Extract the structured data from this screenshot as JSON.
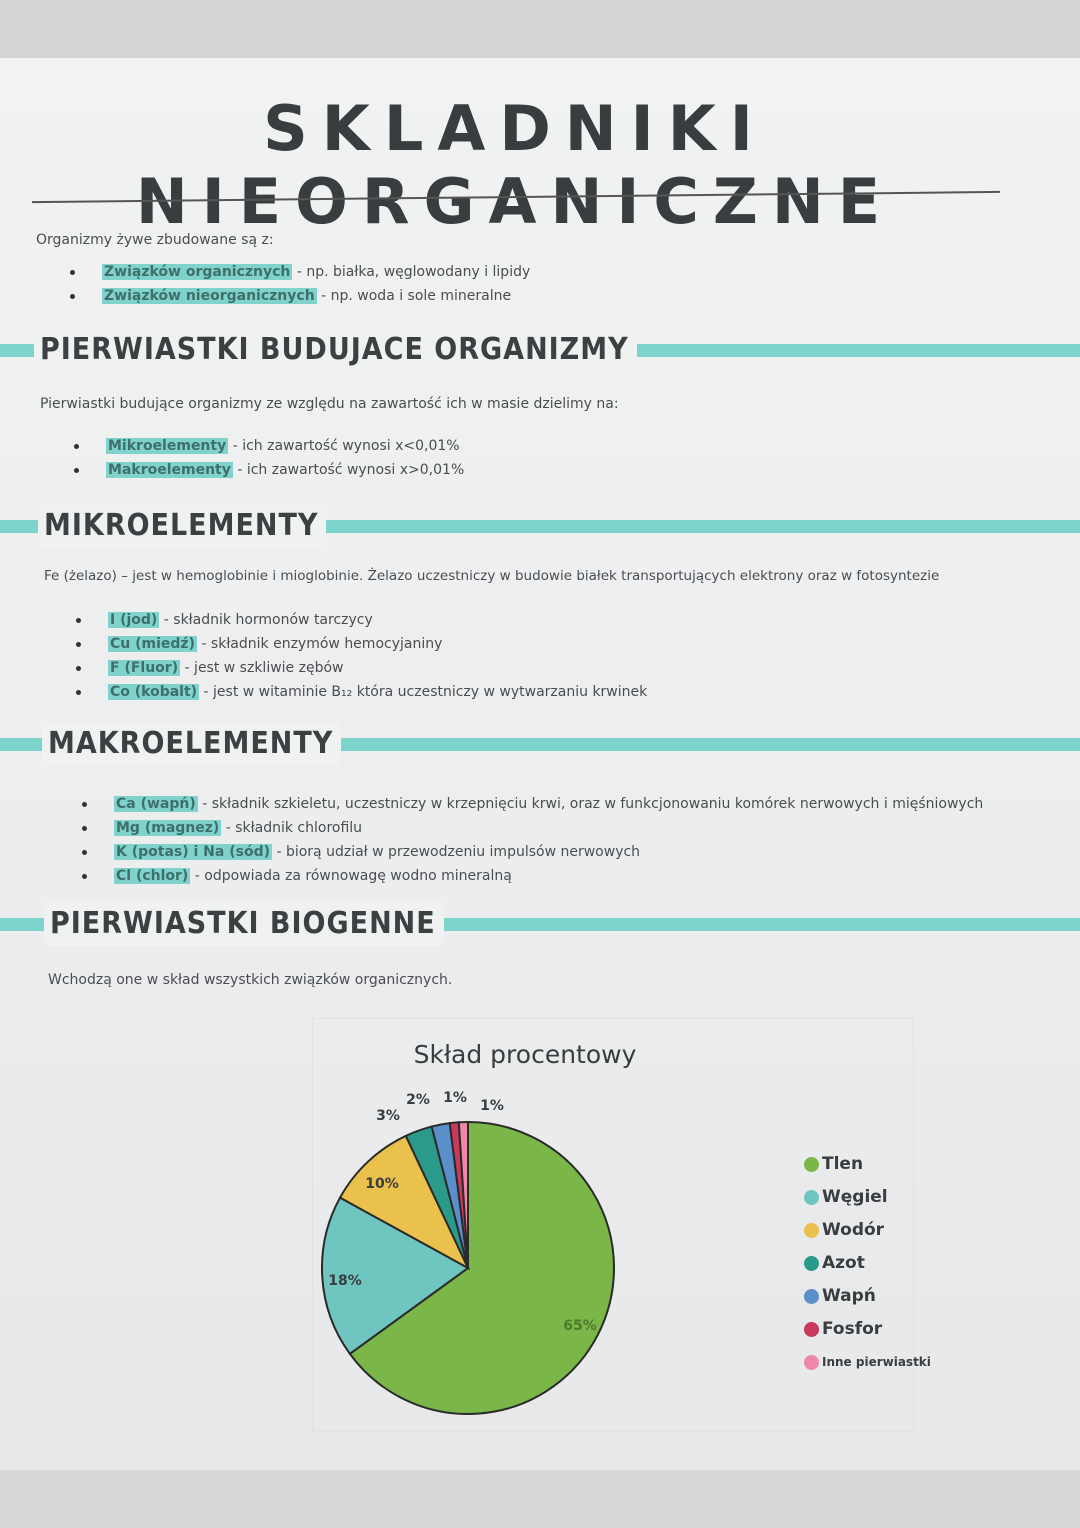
{
  "title": "SKLADNIKI NIEORGANICZNE",
  "intro": {
    "text": "Organizmy żywe zbudowane są z:",
    "items": [
      {
        "highlight": "Związków organicznych",
        "text": "- np. białka, węglowodany i lipidy"
      },
      {
        "highlight": "Związków nieorganicznych",
        "text": "- np. woda i sole mineralne"
      }
    ]
  },
  "sections": {
    "pierwiastki": {
      "heading": "PIERWIASTKI BUDUJACE ORGANIZMY",
      "text": "Pierwiastki budujące organizmy ze względu na zawartość ich w masie dzielimy na:",
      "items": [
        {
          "highlight": "Mikroelementy",
          "text": "- ich zawartość wynosi x<0,01%"
        },
        {
          "highlight": "Makroelementy",
          "text": "- ich zawartość wynosi x>0,01%"
        }
      ]
    },
    "mikro": {
      "heading": "MIKROELEMENTY",
      "text": "Fe (żelazo) – jest w hemoglobinie i mioglobinie. Żelazo uczestniczy w budowie białek transportujących elektrony oraz w fotosyntezie",
      "items": [
        {
          "highlight": "I (jod)",
          "text": "- składnik hormonów tarczycy"
        },
        {
          "highlight": "Cu (miedź)",
          "text": "- składnik enzymów hemocyjaniny"
        },
        {
          "highlight": "F (Fluor)",
          "text": "- jest w szkliwie zębów"
        },
        {
          "highlight": "Co (kobalt)",
          "text": "- jest w witaminie B₁₂ która uczestniczy w wytwarzaniu krwinek"
        }
      ]
    },
    "makro": {
      "heading": "MAKROELEMENTY",
      "items": [
        {
          "highlight": "Ca (wapń)",
          "text": "- składnik szkieletu, uczestniczy w krzepnięciu krwi, oraz w funkcjonowaniu komórek nerwowych i mięśniowych"
        },
        {
          "highlight": "Mg (magnez)",
          "text": "- składnik chlorofilu"
        },
        {
          "highlight": "K (potas) i Na (sód)",
          "text": "- biorą udział w przewodzeniu impulsów nerwowych"
        },
        {
          "highlight": "Cl (chlor)",
          "text": "- odpowiada za równowagę wodno mineralną"
        }
      ]
    },
    "biogenne": {
      "heading": "PIERWIASTKI BIOGENNE",
      "text": "Wchodzą one w skład wszystkich związków organicznych."
    }
  },
  "colors": {
    "accent": "#7dd4cc"
  },
  "chart_data": {
    "type": "pie",
    "title": "Skład procentowy",
    "categories": [
      "Tlen",
      "Węgiel",
      "Wodór",
      "Azot",
      "Wapń",
      "Fosfor",
      "Inne pierwiastki"
    ],
    "values": [
      65,
      18,
      10,
      3,
      2,
      1,
      1
    ],
    "labels": [
      "65%",
      "18%",
      "10%",
      "3%",
      "2%",
      "1%",
      "1%"
    ],
    "colors": [
      "#7ab648",
      "#6fc6c0",
      "#ebc14d",
      "#2a9a8a",
      "#5b8fc9",
      "#c93a5a",
      "#ee88a6"
    ],
    "legend_position": "right",
    "legend": [
      "Tlen",
      "Węgiel",
      "Wodór",
      "Azot",
      "Wapń",
      "Fosfor",
      "Inne pierwiastki"
    ]
  }
}
